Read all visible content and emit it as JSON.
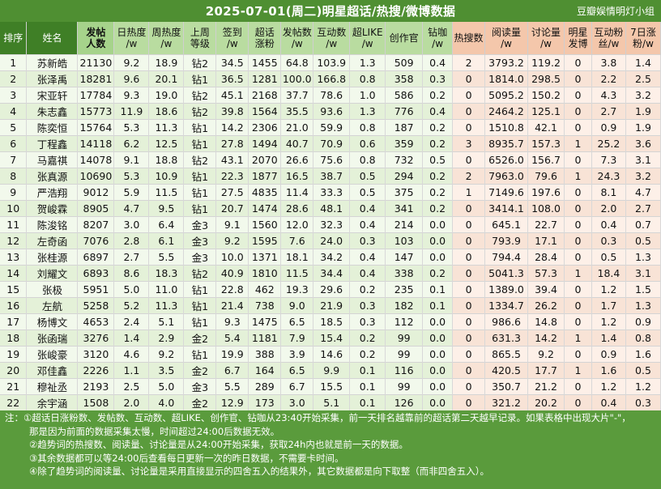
{
  "header": {
    "title": "2025-07-01(周二)明星超话/热搜/微博数据",
    "watermark": "豆瓣娱情明灯小组"
  },
  "colors": {
    "frame_green": "#5a9b3c",
    "header_dark_green": "#3f7f26",
    "header_light_green": "#b9dca0",
    "header_peach": "#f4c7ab",
    "highlight_red": "#c0392b",
    "highlight_blue": "#2a5ca8"
  },
  "table": {
    "columns": [
      {
        "label": "排序",
        "group": "a"
      },
      {
        "label": "姓名",
        "group": "a"
      },
      {
        "label": "发帖\n人数",
        "group": "gd"
      },
      {
        "label": "日热度\n/w",
        "group": "g"
      },
      {
        "label": "周热度\n/w",
        "group": "g"
      },
      {
        "label": "上周\n等级",
        "group": "g"
      },
      {
        "label": "签到\n/w",
        "group": "g"
      },
      {
        "label": "超话\n涨粉",
        "group": "g"
      },
      {
        "label": "发帖数\n/w",
        "group": "g"
      },
      {
        "label": "互动数\n/w",
        "group": "g"
      },
      {
        "label": "超LIKE\n/w",
        "group": "g"
      },
      {
        "label": "创作官",
        "group": "g"
      },
      {
        "label": "钻咖\n/w",
        "group": "g"
      },
      {
        "label": "热搜数",
        "group": "p"
      },
      {
        "label": "阅读量\n/w",
        "group": "p"
      },
      {
        "label": "讨论量\n/w",
        "group": "p"
      },
      {
        "label": "明星\n发博",
        "group": "p"
      },
      {
        "label": "互动粉\n丝/w",
        "group": "p"
      },
      {
        "label": "7日涨\n粉/w",
        "group": "p"
      }
    ],
    "rows": [
      [
        "1",
        "苏新皓",
        "21130",
        "9.2",
        "18.9",
        "钻2",
        "34.5",
        "1455",
        "64.8",
        "103.9",
        "1.3",
        "509",
        "0.4",
        "2",
        "3793.2",
        "119.2",
        "0",
        "3.8",
        "1.4"
      ],
      [
        "2",
        "张泽禹",
        "18281",
        "9.6",
        "20.1",
        "钻1",
        "36.5",
        "1281",
        "100.0",
        "166.8",
        "0.8",
        "358",
        "0.3",
        "0",
        "1814.0",
        "298.5",
        "0",
        "2.2",
        "2.5"
      ],
      [
        "3",
        "宋亚轩",
        "17784",
        "9.3",
        "19.0",
        "钻2",
        "45.1",
        "2168",
        "37.7",
        "78.6",
        "1.0",
        "586",
        "0.2",
        "0",
        "5095.2",
        "150.2",
        "0",
        "4.3",
        "3.2"
      ],
      [
        "4",
        "朱志鑫",
        "15773",
        "11.9",
        "18.6",
        "钻2",
        "39.8",
        "1564",
        "35.5",
        "93.6",
        "1.3",
        "776",
        "0.4",
        "0",
        "2464.2",
        "125.1",
        "0",
        "2.7",
        "1.9"
      ],
      [
        "5",
        "陈奕恒",
        "15764",
        "5.3",
        "11.3",
        "钻1",
        "14.2",
        "2306",
        "21.0",
        "59.9",
        "0.8",
        "187",
        "0.2",
        "0",
        "1510.8",
        "42.1",
        "0",
        "0.9",
        "1.9"
      ],
      [
        "6",
        "丁程鑫",
        "14118",
        "6.2",
        "12.5",
        "钻1",
        "27.8",
        "1494",
        "40.7",
        "70.9",
        "0.6",
        "359",
        "0.2",
        "3",
        "8935.7",
        "157.3",
        "1",
        "25.2",
        "3.6"
      ],
      [
        "7",
        "马嘉祺",
        "14078",
        "9.1",
        "18.8",
        "钻2",
        "43.1",
        "2070",
        "26.6",
        "75.6",
        "0.8",
        "732",
        "0.5",
        "0",
        "6526.0",
        "156.7",
        "0",
        "7.3",
        "3.1"
      ],
      [
        "8",
        "张真源",
        "10690",
        "5.3",
        "10.9",
        "钻1",
        "22.3",
        "1877",
        "16.5",
        "38.7",
        "0.5",
        "294",
        "0.2",
        "2",
        "7963.0",
        "79.6",
        "1",
        "24.3",
        "3.2"
      ],
      [
        "9",
        "严浩翔",
        "9012",
        "5.9",
        "11.5",
        "钻1",
        "27.5",
        "4835",
        "11.4",
        "33.3",
        "0.5",
        "375",
        "0.2",
        "1",
        "7149.6",
        "197.6",
        "0",
        "8.1",
        "4.7"
      ],
      [
        "10",
        "贺峻霖",
        "8905",
        "4.7",
        "9.5",
        "钻1",
        "20.7",
        "1474",
        "28.6",
        "48.1",
        "0.4",
        "341",
        "0.2",
        "0",
        "3414.1",
        "108.0",
        "0",
        "2.0",
        "2.7"
      ],
      [
        "11",
        "陈浚铭",
        "8207",
        "3.0",
        "6.4",
        "金3",
        "9.1",
        "1560",
        "12.0",
        "32.3",
        "0.4",
        "214",
        "0.0",
        "0",
        "645.1",
        "22.7",
        "0",
        "0.4",
        "0.7"
      ],
      [
        "12",
        "左奇函",
        "7076",
        "2.8",
        "6.1",
        "金3",
        "9.2",
        "1595",
        "7.6",
        "24.0",
        "0.3",
        "103",
        "0.0",
        "0",
        "793.9",
        "17.1",
        "0",
        "0.3",
        "0.5"
      ],
      [
        "13",
        "张桂源",
        "6897",
        "2.7",
        "5.5",
        "金3",
        "10.0",
        "1371",
        "18.1",
        "34.2",
        "0.4",
        "147",
        "0.0",
        "0",
        "794.4",
        "28.4",
        "0",
        "0.5",
        "1.3"
      ],
      [
        "14",
        "刘耀文",
        "6893",
        "8.6",
        "18.3",
        "钻2",
        "40.9",
        "1810",
        "11.5",
        "34.4",
        "0.4",
        "338",
        "0.2",
        "0",
        "5041.3",
        "57.3",
        "1",
        "18.4",
        "3.1"
      ],
      [
        "15",
        "张极",
        "5951",
        "5.0",
        "11.0",
        "钻1",
        "22.8",
        "462",
        "19.3",
        "29.6",
        "0.2",
        "235",
        "0.1",
        "0",
        "1389.0",
        "39.4",
        "0",
        "1.2",
        "1.5"
      ],
      [
        "16",
        "左航",
        "5258",
        "5.2",
        "11.3",
        "钻1",
        "21.4",
        "738",
        "9.0",
        "21.9",
        "0.3",
        "182",
        "0.1",
        "0",
        "1334.7",
        "26.2",
        "0",
        "1.7",
        "1.3"
      ],
      [
        "17",
        "杨博文",
        "4653",
        "2.4",
        "5.1",
        "钻1",
        "9.3",
        "1475",
        "6.5",
        "18.5",
        "0.3",
        "112",
        "0.0",
        "0",
        "986.6",
        "14.8",
        "0",
        "1.2",
        "0.9"
      ],
      [
        "18",
        "张函瑞",
        "3276",
        "1.4",
        "2.9",
        "金2",
        "5.4",
        "1181",
        "7.9",
        "15.4",
        "0.2",
        "99",
        "0.0",
        "0",
        "631.3",
        "14.2",
        "1",
        "1.4",
        "0.8"
      ],
      [
        "19",
        "张峻豪",
        "3120",
        "4.6",
        "9.2",
        "钻1",
        "19.9",
        "388",
        "3.9",
        "14.6",
        "0.2",
        "99",
        "0.0",
        "0",
        "865.5",
        "9.2",
        "0",
        "0.9",
        "1.6"
      ],
      [
        "20",
        "邓佳鑫",
        "2226",
        "1.1",
        "3.5",
        "金2",
        "6.7",
        "164",
        "6.5",
        "9.9",
        "0.1",
        "116",
        "0.0",
        "0",
        "420.5",
        "17.7",
        "1",
        "1.6",
        "0.5"
      ],
      [
        "21",
        "穆祉丞",
        "2193",
        "2.5",
        "5.0",
        "金3",
        "5.5",
        "289",
        "6.7",
        "15.5",
        "0.1",
        "99",
        "0.0",
        "0",
        "350.7",
        "21.2",
        "0",
        "1.2",
        "1.2"
      ],
      [
        "22",
        "余宇涵",
        "1508",
        "2.0",
        "4.0",
        "金2",
        "12.9",
        "173",
        "3.0",
        "5.1",
        "0.1",
        "126",
        "0.0",
        "0",
        "321.2",
        "20.2",
        "0",
        "0.4",
        "0.3"
      ]
    ],
    "highlights": {
      "red": [
        [
          3,
          3
        ],
        [
          3,
          6
        ],
        [
          8,
          6
        ],
        [
          8,
          7
        ],
        [
          5,
          14
        ],
        [
          7,
          14
        ],
        [
          8,
          15
        ]
      ],
      "blue": [
        [
          8,
          2
        ],
        [
          19,
          3
        ],
        [
          11,
          14
        ],
        [
          12,
          14
        ],
        [
          14,
          15
        ],
        [
          15,
          15
        ],
        [
          16,
          14
        ],
        [
          18,
          15
        ]
      ]
    }
  },
  "notes": {
    "label": "注：",
    "line1": "①超话日涨粉数、发帖数、互动数、超LIKE、创作官、钻咖从23:40开始采集，前一天排名越靠前的超话第二天越早记录。如果表格中出现大片\"-\"，",
    "line1b": "那是因为前面的数据采集太慢，时间超过24:00后数据无效。",
    "line2": "②趋势词的热搜数、阅读量、讨论量是从24:00开始采集，获取24h内也就是前一天的数据。",
    "line3": "③其余数据都可以等24:00后查看每日更新一次的昨日数据，不需要卡时间。",
    "line4": "④除了趋势词的阅读量、讨论量是采用直接显示的四舍五入的结果外，其它数据都是向下取整（而非四舍五入）。"
  }
}
